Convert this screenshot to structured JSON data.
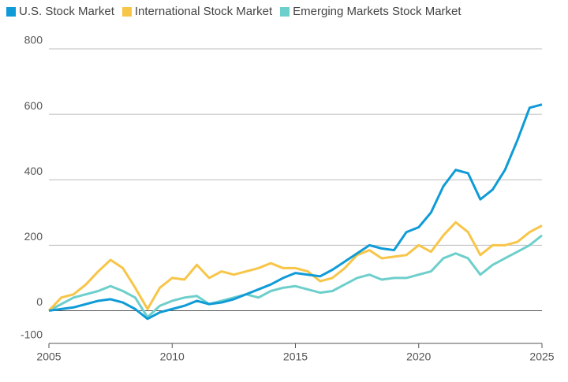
{
  "chart_data": {
    "type": "line",
    "x": [
      2005,
      2005.5,
      2006,
      2006.5,
      2007,
      2007.5,
      2008,
      2008.5,
      2009,
      2009.5,
      2010,
      2010.5,
      2011,
      2011.5,
      2012,
      2012.5,
      2013,
      2013.5,
      2014,
      2014.5,
      2015,
      2015.5,
      2016,
      2016.5,
      2017,
      2017.5,
      2018,
      2018.5,
      2019,
      2019.5,
      2020,
      2020.5,
      2021,
      2021.5,
      2022,
      2022.5,
      2023,
      2023.5,
      2024,
      2024.5,
      2025
    ],
    "series": [
      {
        "name": "U.S. Stock Market",
        "color": "#0f9bd7",
        "values": [
          0,
          5,
          10,
          20,
          30,
          35,
          25,
          5,
          -25,
          -5,
          5,
          15,
          30,
          20,
          25,
          35,
          50,
          65,
          80,
          100,
          115,
          110,
          105,
          125,
          150,
          175,
          200,
          190,
          185,
          240,
          255,
          300,
          380,
          430,
          420,
          340,
          370,
          430,
          520,
          620,
          630
        ]
      },
      {
        "name": "International Stock Market",
        "color": "#f7c548",
        "values": [
          0,
          40,
          50,
          80,
          120,
          155,
          130,
          70,
          5,
          70,
          100,
          95,
          140,
          100,
          120,
          110,
          120,
          130,
          145,
          130,
          130,
          120,
          90,
          100,
          130,
          170,
          185,
          160,
          165,
          170,
          200,
          180,
          230,
          270,
          240,
          170,
          200,
          200,
          210,
          240,
          260
        ]
      },
      {
        "name": "Emerging Markets Stock Market",
        "color": "#6dcfcb",
        "values": [
          0,
          20,
          40,
          50,
          60,
          75,
          60,
          40,
          -20,
          15,
          30,
          40,
          45,
          20,
          30,
          40,
          50,
          40,
          60,
          70,
          75,
          65,
          55,
          60,
          80,
          100,
          110,
          95,
          100,
          100,
          110,
          120,
          160,
          175,
          160,
          110,
          140,
          160,
          180,
          200,
          230
        ]
      }
    ],
    "xlim": [
      2005,
      2025
    ],
    "xticks": [
      2005,
      2010,
      2015,
      2020,
      2025
    ],
    "ylim": [
      -100,
      800
    ],
    "yticks": [
      -100,
      0,
      200,
      400,
      600,
      800
    ],
    "grid": true
  }
}
